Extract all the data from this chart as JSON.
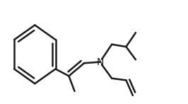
{
  "bg_color": "#ffffff",
  "line_color": "#1a1a1a",
  "line_width": 1.8,
  "N_label": "N",
  "N_fontsize": 10,
  "fig_width": 2.66,
  "fig_height": 1.47,
  "dpi": 100
}
